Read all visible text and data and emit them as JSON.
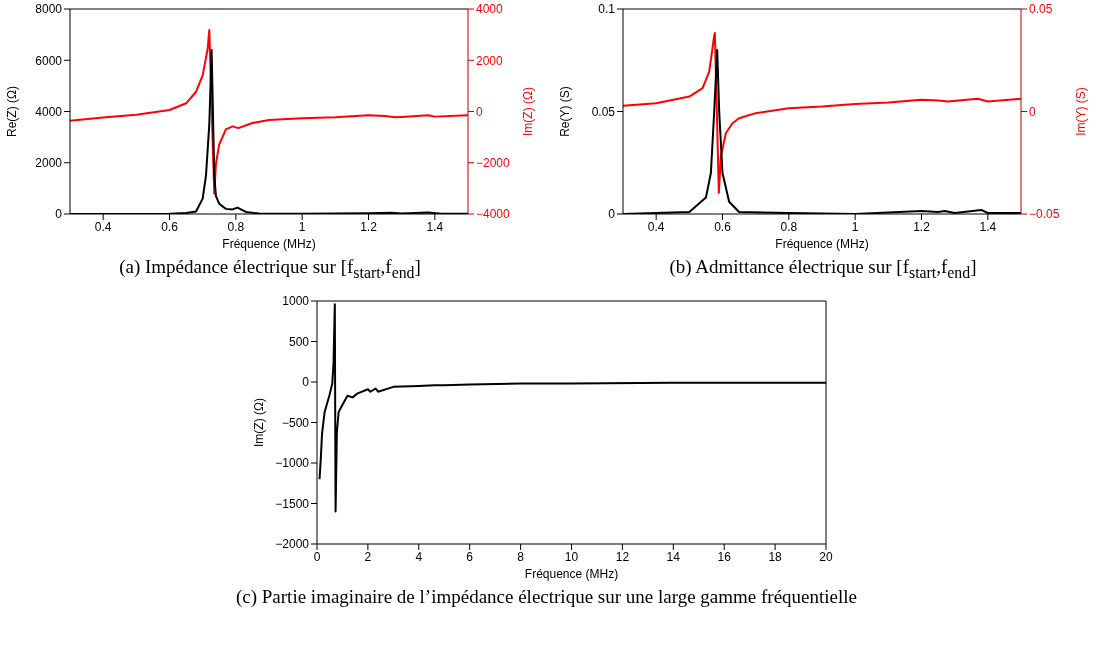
{
  "chart_data": [
    {
      "type": "line",
      "title": "(a) Impédance électrique sur [f$_{start}$,f$_{end}$]",
      "xlabel": "Fréquence (MHz)",
      "ylabel": "Re(Z) (Ω)",
      "y2label": "Im(Z) (Ω)",
      "xlim": [
        0.3,
        1.5
      ],
      "xticks": [
        0.4,
        0.6,
        0.8,
        1,
        1.2,
        1.4
      ],
      "ylim": [
        0,
        8000
      ],
      "yticks": [
        0,
        2000,
        4000,
        6000,
        8000
      ],
      "y2lim": [
        -4000,
        4000
      ],
      "y2ticks": [
        -4000,
        -2000,
        0,
        2000,
        4000
      ],
      "marker": "none",
      "line_style": "solid",
      "series": [
        {
          "color": "#000000",
          "x": [
            0.3,
            0.5,
            0.6,
            0.65,
            0.68,
            0.7,
            0.71,
            0.72,
            0.727,
            0.735,
            0.74,
            0.75,
            0.77,
            0.79,
            0.805,
            0.83,
            0.87,
            1.0,
            1.2,
            1.27,
            1.3,
            1.38,
            1.42,
            1.5
          ],
          "values": [
            0,
            0,
            10,
            40,
            100,
            600,
            1500,
            3500,
            6400,
            1500,
            700,
            400,
            200,
            180,
            250,
            80,
            20,
            10,
            30,
            50,
            20,
            60,
            10,
            10
          ]
        },
        {
          "color": "#ff0000",
          "axis": "y2",
          "x": [
            0.3,
            0.4,
            0.5,
            0.6,
            0.65,
            0.68,
            0.7,
            0.715,
            0.72,
            0.735,
            0.74,
            0.75,
            0.77,
            0.79,
            0.8,
            0.81,
            0.85,
            0.9,
            1.0,
            1.1,
            1.2,
            1.25,
            1.28,
            1.3,
            1.38,
            1.4,
            1.5
          ],
          "values": [
            -360,
            -230,
            -130,
            60,
            320,
            770,
            1410,
            2440,
            3180,
            -3210,
            -2050,
            -1280,
            -700,
            -580,
            -620,
            -640,
            -450,
            -330,
            -260,
            -220,
            -150,
            -180,
            -220,
            -210,
            -150,
            -200,
            -150
          ]
        }
      ]
    },
    {
      "type": "line",
      "title": "(b) Admittance électrique sur [f$_{start}$,f$_{end}$]",
      "xlabel": "Fréquence (MHz)",
      "ylabel": "Re(Y) (S)",
      "y2label": "Im(Y) (S)",
      "xlim": [
        0.3,
        1.5
      ],
      "xticks": [
        0.4,
        0.6,
        0.8,
        1,
        1.2,
        1.4
      ],
      "ylim": [
        0,
        0.1
      ],
      "yticks": [
        0,
        0.05,
        0.1
      ],
      "y2lim": [
        -0.05,
        0.05
      ],
      "y2ticks": [
        -0.05,
        0,
        0.05
      ],
      "marker": "none",
      "line_style": "solid",
      "series": [
        {
          "color": "#000000",
          "x": [
            0.3,
            0.5,
            0.55,
            0.565,
            0.575,
            0.584,
            0.59,
            0.6,
            0.62,
            0.65,
            0.8,
            1.0,
            1.2,
            1.25,
            1.27,
            1.3,
            1.38,
            1.4,
            1.5
          ],
          "values": [
            0,
            0.001,
            0.008,
            0.02,
            0.05,
            0.08,
            0.05,
            0.02,
            0.006,
            0.001,
            0.0005,
            0,
            0.0015,
            0.001,
            0.0015,
            0.0005,
            0.002,
            0.0005,
            0.0005
          ]
        },
        {
          "color": "#ff0000",
          "axis": "y2",
          "x": [
            0.3,
            0.4,
            0.5,
            0.54,
            0.56,
            0.575,
            0.577,
            0.589,
            0.595,
            0.61,
            0.63,
            0.65,
            0.7,
            0.8,
            0.9,
            1.0,
            1.1,
            1.2,
            1.25,
            1.28,
            1.37,
            1.4,
            1.5
          ],
          "values": [
            0.0028,
            0.004,
            0.0073,
            0.0114,
            0.0195,
            0.037,
            0.0383,
            -0.0396,
            -0.022,
            -0.0106,
            -0.0057,
            -0.0033,
            -0.0008,
            0.0016,
            0.0024,
            0.0036,
            0.0044,
            0.0057,
            0.0054,
            0.0049,
            0.0062,
            0.0049,
            0.0062
          ]
        }
      ]
    },
    {
      "type": "line",
      "title": "(c) Partie imaginaire de l’impédance électrique sur une large gamme fréquentielle",
      "xlabel": "Fréquence (MHz)",
      "ylabel": "Im(Z) (Ω)",
      "xlim": [
        0,
        20
      ],
      "xticks": [
        0,
        2,
        4,
        6,
        8,
        10,
        12,
        14,
        16,
        18,
        20
      ],
      "ylim": [
        -2000,
        1000
      ],
      "yticks": [
        -2000,
        -1500,
        -1000,
        -500,
        0,
        500,
        1000
      ],
      "marker": "none",
      "line_style": "solid",
      "series": [
        {
          "color": "#000000",
          "x": [
            0.1,
            0.15,
            0.2,
            0.3,
            0.5,
            0.6,
            0.65,
            0.7,
            0.73,
            0.78,
            0.85,
            1.0,
            1.2,
            1.4,
            1.6,
            2.0,
            2.1,
            2.3,
            2.4,
            3.0,
            4.0,
            4.6,
            5.0,
            6,
            8,
            10,
            14,
            20
          ],
          "values": [
            -1200,
            -940,
            -630,
            -370,
            -150,
            -20,
            240,
            960,
            -1600,
            -630,
            -370,
            -280,
            -170,
            -190,
            -140,
            -90,
            -120,
            -80,
            -120,
            -60,
            -50,
            -40,
            -40,
            -30,
            -20,
            -20,
            -10,
            -10
          ]
        }
      ]
    }
  ]
}
